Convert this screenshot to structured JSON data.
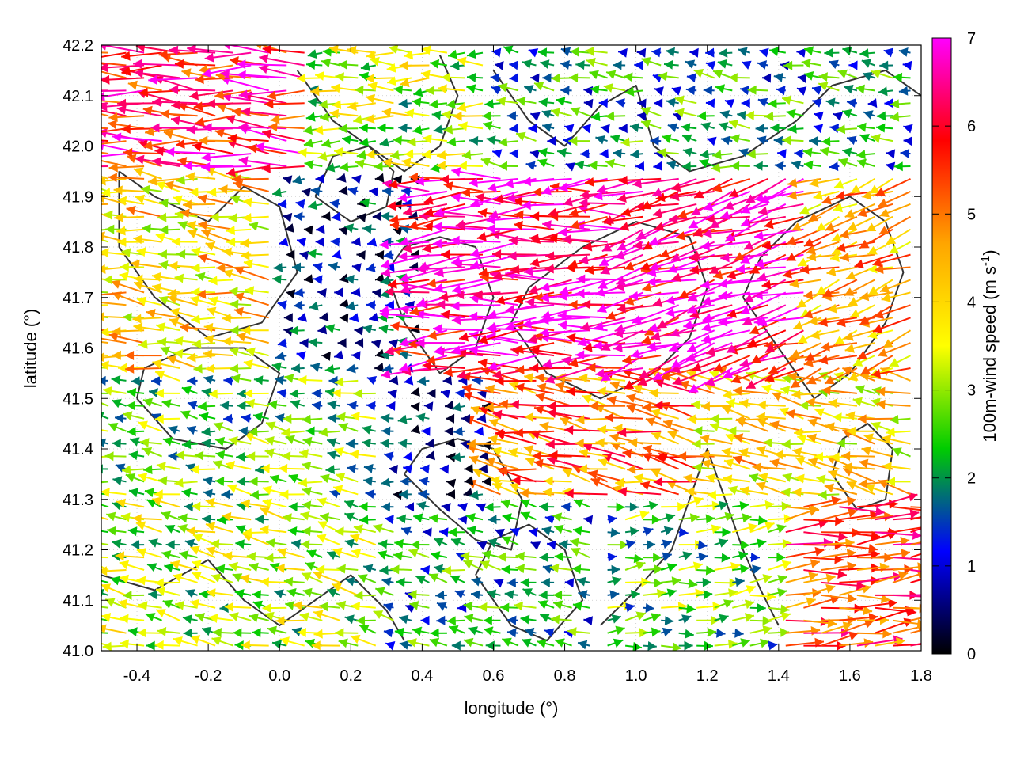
{
  "chart_data": {
    "type": "quiver",
    "xlabel": "longitude (°)",
    "ylabel": "latitude (°)",
    "xlim": [
      -0.5,
      1.8
    ],
    "ylim": [
      41.0,
      42.2
    ],
    "xticks": [
      "-0.4",
      "-0.2",
      "0.0",
      "0.2",
      "0.4",
      "0.6",
      "0.8",
      "1.0",
      "1.2",
      "1.4",
      "1.6",
      "1.8"
    ],
    "yticks": [
      "41.0",
      "41.1",
      "41.2",
      "41.3",
      "41.4",
      "41.5",
      "41.6",
      "41.7",
      "41.8",
      "41.9",
      "42.0",
      "42.1",
      "42.2"
    ],
    "grid": true,
    "colorbar": {
      "label": "100m-wind speed (m s-1)",
      "label_main": "100m-wind speed (m s",
      "label_sup": "-1",
      "label_end": ")",
      "range": [
        0,
        7
      ],
      "ticks": [
        "0",
        "1",
        "2",
        "3",
        "4",
        "5",
        "6",
        "7"
      ],
      "colors": [
        "#000000",
        "#0000ff",
        "#00cc00",
        "#ffff00",
        "#ffa500",
        "#ff0000",
        "#ff00ff"
      ]
    },
    "field_description": "Wind vectors colored by 100m wind speed with black terrain contours. Flow is predominantly easterly (arrows pointing west) over most of the domain with strongest winds (6-7 m/s) around 41.6-41.9N, 0.5-1.4E, and westerly flow in the southeast corner.",
    "regions": [
      {
        "lon": [
          -0.5,
          0.1
        ],
        "lat": [
          41.95,
          42.2
        ],
        "u": -5.5,
        "v": 0.3,
        "speed": 6
      },
      {
        "lon": [
          0.1,
          0.6
        ],
        "lat": [
          41.95,
          42.2
        ],
        "u": -3.0,
        "v": 0.0,
        "speed": 3
      },
      {
        "lon": [
          0.6,
          1.8
        ],
        "lat": [
          41.95,
          42.2
        ],
        "u": -1.5,
        "v": 0.2,
        "speed": 2
      },
      {
        "lon": [
          -0.5,
          0.0
        ],
        "lat": [
          41.55,
          41.95
        ],
        "u": -3.5,
        "v": 0.5,
        "speed": 4
      },
      {
        "lon": [
          0.0,
          0.4
        ],
        "lat": [
          41.55,
          41.95
        ],
        "u": -1.0,
        "v": 0.0,
        "speed": 1
      },
      {
        "lon": [
          0.4,
          1.0
        ],
        "lat": [
          41.55,
          41.95
        ],
        "u": -6.0,
        "v": -0.3,
        "speed": 6.5
      },
      {
        "lon": [
          1.0,
          1.5
        ],
        "lat": [
          41.55,
          41.95
        ],
        "u": -5.0,
        "v": -1.5,
        "speed": 6.5
      },
      {
        "lon": [
          1.5,
          1.8
        ],
        "lat": [
          41.55,
          41.95
        ],
        "u": -3.0,
        "v": -1.0,
        "speed": 4.5
      },
      {
        "lon": [
          -0.5,
          0.3
        ],
        "lat": [
          41.3,
          41.55
        ],
        "u": -2.0,
        "v": 0.3,
        "speed": 2.5
      },
      {
        "lon": [
          0.3,
          0.6
        ],
        "lat": [
          41.3,
          41.55
        ],
        "u": -0.5,
        "v": 0.0,
        "speed": 0.8
      },
      {
        "lon": [
          0.6,
          1.2
        ],
        "lat": [
          41.3,
          41.55
        ],
        "u": -4.5,
        "v": 0.8,
        "speed": 5
      },
      {
        "lon": [
          1.2,
          1.8
        ],
        "lat": [
          41.3,
          41.55
        ],
        "u": -3.0,
        "v": 0.5,
        "speed": 4
      },
      {
        "lon": [
          -0.5,
          0.3
        ],
        "lat": [
          41.0,
          41.3
        ],
        "u": -2.5,
        "v": 0.5,
        "speed": 3
      },
      {
        "lon": [
          0.3,
          0.9
        ],
        "lat": [
          41.0,
          41.3
        ],
        "u": -1.5,
        "v": 0.3,
        "speed": 2
      },
      {
        "lon": [
          0.9,
          1.4
        ],
        "lat": [
          41.0,
          41.3
        ],
        "u": 2.5,
        "v": 0.3,
        "speed": 2.5
      },
      {
        "lon": [
          1.4,
          1.8
        ],
        "lat": [
          41.0,
          41.3
        ],
        "u": 5.0,
        "v": 0.5,
        "speed": 5.5
      }
    ],
    "contours": [
      [
        [
          -0.45,
          41.95
        ],
        [
          -0.35,
          41.9
        ],
        [
          -0.2,
          41.85
        ],
        [
          -0.1,
          41.92
        ],
        [
          0.0,
          41.88
        ],
        [
          0.05,
          41.75
        ],
        [
          -0.05,
          41.65
        ],
        [
          -0.2,
          41.62
        ],
        [
          -0.35,
          41.7
        ],
        [
          -0.45,
          41.8
        ],
        [
          -0.45,
          41.95
        ]
      ],
      [
        [
          0.05,
          42.15
        ],
        [
          0.15,
          42.05
        ],
        [
          0.25,
          42.0
        ],
        [
          0.35,
          41.95
        ],
        [
          0.45,
          42.0
        ],
        [
          0.5,
          42.1
        ],
        [
          0.45,
          42.18
        ]
      ],
      [
        [
          0.6,
          42.15
        ],
        [
          0.7,
          42.05
        ],
        [
          0.8,
          42.0
        ],
        [
          0.9,
          42.08
        ],
        [
          1.0,
          42.12
        ],
        [
          1.05,
          42.0
        ],
        [
          1.15,
          41.95
        ],
        [
          1.3,
          41.98
        ],
        [
          1.45,
          42.05
        ],
        [
          1.55,
          42.12
        ],
        [
          1.7,
          42.15
        ],
        [
          1.8,
          42.1
        ]
      ],
      [
        [
          0.3,
          41.75
        ],
        [
          0.35,
          41.65
        ],
        [
          0.45,
          41.55
        ],
        [
          0.55,
          41.6
        ],
        [
          0.6,
          41.7
        ],
        [
          0.55,
          41.8
        ],
        [
          0.45,
          41.82
        ],
        [
          0.35,
          41.8
        ],
        [
          0.3,
          41.75
        ]
      ],
      [
        [
          0.65,
          41.65
        ],
        [
          0.75,
          41.55
        ],
        [
          0.9,
          41.5
        ],
        [
          1.05,
          41.55
        ],
        [
          1.15,
          41.62
        ],
        [
          1.2,
          41.72
        ],
        [
          1.15,
          41.82
        ],
        [
          1.0,
          41.85
        ],
        [
          0.85,
          41.8
        ],
        [
          0.7,
          41.72
        ],
        [
          0.65,
          41.65
        ]
      ],
      [
        [
          1.3,
          41.7
        ],
        [
          1.4,
          41.6
        ],
        [
          1.5,
          41.5
        ],
        [
          1.6,
          41.55
        ],
        [
          1.7,
          41.65
        ],
        [
          1.75,
          41.75
        ],
        [
          1.7,
          41.85
        ],
        [
          1.6,
          41.9
        ],
        [
          1.45,
          41.85
        ],
        [
          1.35,
          41.78
        ],
        [
          1.3,
          41.7
        ]
      ],
      [
        [
          -0.4,
          41.5
        ],
        [
          -0.3,
          41.42
        ],
        [
          -0.15,
          41.4
        ],
        [
          -0.05,
          41.45
        ],
        [
          0.0,
          41.55
        ],
        [
          -0.1,
          41.6
        ],
        [
          -0.25,
          41.6
        ],
        [
          -0.38,
          41.56
        ],
        [
          -0.4,
          41.5
        ]
      ],
      [
        [
          0.35,
          41.35
        ],
        [
          0.45,
          41.28
        ],
        [
          0.55,
          41.22
        ],
        [
          0.65,
          41.2
        ],
        [
          0.68,
          41.3
        ],
        [
          0.6,
          41.4
        ],
        [
          0.5,
          41.42
        ],
        [
          0.4,
          41.4
        ],
        [
          0.35,
          41.35
        ]
      ],
      [
        [
          0.55,
          41.15
        ],
        [
          0.65,
          41.05
        ],
        [
          0.75,
          41.02
        ],
        [
          0.85,
          41.1
        ],
        [
          0.8,
          41.2
        ],
        [
          0.7,
          41.25
        ],
        [
          0.6,
          41.22
        ],
        [
          0.55,
          41.15
        ]
      ],
      [
        [
          0.9,
          41.05
        ],
        [
          1.0,
          41.12
        ],
        [
          1.1,
          41.2
        ],
        [
          1.15,
          41.3
        ],
        [
          1.2,
          41.4
        ],
        [
          1.25,
          41.3
        ],
        [
          1.3,
          41.2
        ],
        [
          1.35,
          41.12
        ],
        [
          1.4,
          41.05
        ]
      ],
      [
        [
          -0.5,
          41.15
        ],
        [
          -0.35,
          41.12
        ],
        [
          -0.2,
          41.18
        ],
        [
          -0.1,
          41.1
        ],
        [
          0.0,
          41.05
        ],
        [
          0.1,
          41.1
        ],
        [
          0.2,
          41.15
        ],
        [
          0.3,
          41.08
        ],
        [
          0.35,
          41.02
        ]
      ],
      [
        [
          1.55,
          41.35
        ],
        [
          1.62,
          41.28
        ],
        [
          1.7,
          41.3
        ],
        [
          1.72,
          41.4
        ],
        [
          1.65,
          41.45
        ],
        [
          1.58,
          41.42
        ],
        [
          1.55,
          41.35
        ]
      ],
      [
        [
          0.1,
          41.9
        ],
        [
          0.2,
          41.85
        ],
        [
          0.3,
          41.88
        ],
        [
          0.32,
          41.95
        ],
        [
          0.25,
          42.0
        ],
        [
          0.15,
          41.98
        ],
        [
          0.1,
          41.9
        ]
      ]
    ]
  }
}
